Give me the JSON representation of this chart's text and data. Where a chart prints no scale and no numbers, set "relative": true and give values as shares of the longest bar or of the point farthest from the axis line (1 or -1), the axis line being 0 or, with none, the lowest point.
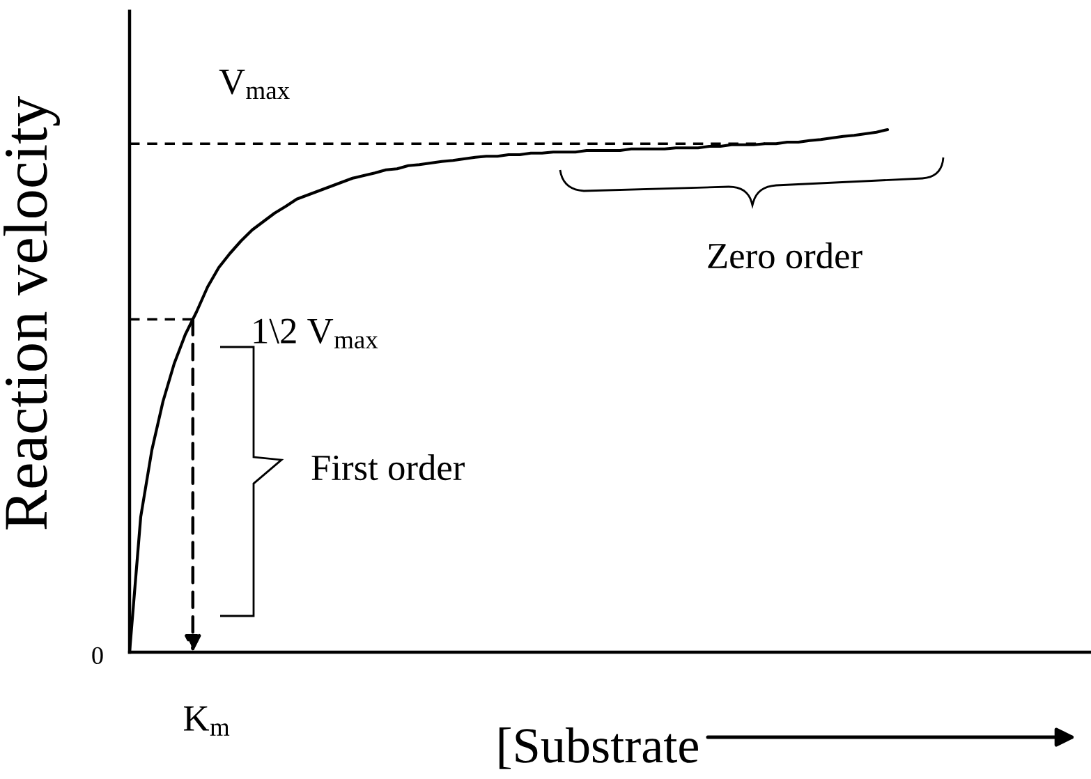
{
  "chart_data": {
    "type": "line",
    "relative": true,
    "line_style": "solid",
    "xlabel": "[Substrate",
    "ylabel": "Reaction velocity",
    "categories": [
      null,
      null,
      null,
      null,
      null,
      null,
      null,
      null,
      null,
      null,
      null,
      null,
      null,
      null,
      null,
      null,
      null,
      null,
      null,
      null,
      null,
      null,
      null,
      null,
      null,
      null,
      null,
      null,
      null,
      null,
      null,
      null,
      null,
      null,
      null,
      null,
      null,
      null,
      null,
      null,
      null,
      null,
      null,
      null,
      null,
      null,
      null,
      null,
      null,
      null,
      null,
      null,
      null,
      null,
      null,
      null,
      null,
      null,
      null,
      null,
      null,
      null,
      null,
      null,
      null,
      null,
      null,
      null,
      null
    ],
    "series": [
      {
        "color": "#000000",
        "values": [
          0,
          0.259,
          0.387,
          0.48,
          0.552,
          0.608,
          0.651,
          0.699,
          0.736,
          0.763,
          0.787,
          0.808,
          0.824,
          0.84,
          0.853,
          0.867,
          0.875,
          0.883,
          0.891,
          0.899,
          0.907,
          0.912,
          0.917,
          0.923,
          0.925,
          0.931,
          0.933,
          0.936,
          0.939,
          0.941,
          0.944,
          0.947,
          0.949,
          0.949,
          0.952,
          0.952,
          0.955,
          0.955,
          0.957,
          0.957,
          0.957,
          0.96,
          0.96,
          0.96,
          0.96,
          0.963,
          0.963,
          0.963,
          0.963,
          0.965,
          0.965,
          0.965,
          0.968,
          0.968,
          0.971,
          0.971,
          0.971,
          0.973,
          0.973,
          0.976,
          0.976,
          0.979,
          0.981,
          0.984,
          0.987,
          0.989,
          0.992,
          0.995,
          1
        ]
      }
    ],
    "ref_lines": [
      {
        "axis": "y",
        "value": 0.973,
        "label": "V$_{max}$",
        "line_style": "dashed",
        "color": "#000000"
      },
      {
        "axis": "y",
        "value": 0.637,
        "label": "1\\2 V$_{max}$",
        "line_style": "dashed",
        "color": "#000000"
      }
    ],
    "annotations": [
      "Zero order",
      "First order",
      "K$_{m}$",
      "0"
    ]
  }
}
